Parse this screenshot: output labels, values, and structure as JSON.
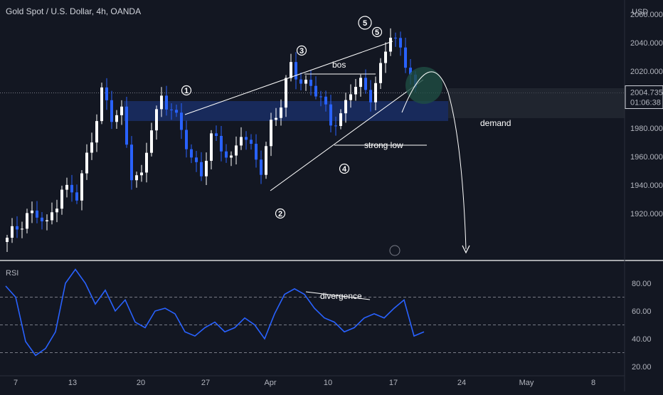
{
  "header": {
    "title": "Gold Spot / U.S. Dollar, 4h, OANDA",
    "currency": "USD"
  },
  "price_tag": {
    "price": "2004.735",
    "countdown": "01:06:38"
  },
  "rsi_label": "RSI",
  "annotations": {
    "bos": "bos",
    "demand": "demand",
    "strong_low": "strong low",
    "divergence": "divergence",
    "wave_1": "1",
    "wave_2": "2",
    "wave_3": "3",
    "wave_4": "4",
    "wave_5": "5",
    "wave_big_5": "5"
  },
  "colors": {
    "background": "#131722",
    "bull": "#ffffff",
    "bear": "#2962ff",
    "rsi_line": "#2962ff",
    "demand_zone": "#1e3a8a",
    "target_circle": "#1f4d44"
  },
  "chart_data": [
    {
      "type": "candlestick",
      "title": "Gold Spot / U.S. Dollar, 4h, OANDA",
      "ylabel": "USD",
      "ylim": [
        1893,
        2075
      ],
      "yticks": [
        "2060.000",
        "2040.000",
        "2020.000",
        "2000.000",
        "1980.000",
        "1960.000",
        "1940.000",
        "1920.000"
      ],
      "ytick_values": [
        2060,
        2040,
        2020,
        2000,
        1980,
        1960,
        1940,
        1920
      ],
      "xticks": [
        "7",
        "13",
        "20",
        "27",
        "Apr",
        "10",
        "17",
        "24",
        "May",
        "8"
      ],
      "path_close": [
        [
          0,
          1900
        ],
        [
          4,
          1921
        ],
        [
          6,
          1918
        ],
        [
          8,
          1910
        ],
        [
          11,
          1940
        ],
        [
          14,
          1930
        ],
        [
          17,
          1975
        ],
        [
          19,
          2006
        ],
        [
          21,
          1985
        ],
        [
          23,
          1992
        ],
        [
          25,
          1950
        ],
        [
          27,
          1943
        ],
        [
          29,
          1980
        ],
        [
          31,
          2003
        ],
        [
          33,
          1995
        ],
        [
          35,
          1975
        ],
        [
          37,
          1960
        ],
        [
          39,
          1950
        ],
        [
          41,
          1972
        ],
        [
          43,
          1965
        ],
        [
          45,
          1960
        ],
        [
          47,
          1978
        ],
        [
          49,
          1962
        ],
        [
          51,
          1952
        ],
        [
          53,
          1985
        ],
        [
          55,
          1995
        ],
        [
          57,
          2023
        ],
        [
          59,
          2015
        ],
        [
          61,
          2010
        ],
        [
          63,
          1998
        ],
        [
          65,
          1985
        ],
        [
          67,
          1990
        ],
        [
          69,
          2005
        ],
        [
          71,
          2010
        ],
        [
          73,
          2005
        ],
        [
          75,
          2022
        ],
        [
          77,
          2044
        ],
        [
          79,
          2035
        ],
        [
          81,
          2022
        ],
        [
          82,
          2005
        ]
      ],
      "demand_zone": [
        1985,
        1999
      ],
      "current_price": 2004.735,
      "series": []
    },
    {
      "type": "line",
      "title": "RSI",
      "ylim": [
        18,
        95
      ],
      "yticks": [
        "80.00",
        "60.00",
        "40.00",
        "20.00"
      ],
      "ytick_values": [
        80,
        60,
        40,
        20
      ],
      "levels": [
        70,
        50,
        30
      ],
      "x": [
        0,
        2,
        4,
        6,
        8,
        10,
        12,
        14,
        16,
        18,
        20,
        22,
        24,
        26,
        28,
        30,
        32,
        34,
        36,
        38,
        40,
        42,
        44,
        46,
        48,
        50,
        52,
        54,
        56,
        58,
        60,
        62,
        64,
        66,
        68,
        70,
        72,
        74,
        76,
        78,
        80,
        82,
        84
      ],
      "values": [
        78,
        70,
        38,
        28,
        33,
        45,
        80,
        90,
        80,
        65,
        75,
        60,
        68,
        52,
        48,
        60,
        62,
        58,
        45,
        42,
        48,
        52,
        45,
        48,
        55,
        50,
        40,
        58,
        72,
        76,
        72,
        62,
        55,
        52,
        45,
        48,
        55,
        58,
        55,
        62,
        68,
        42,
        45
      ]
    }
  ]
}
